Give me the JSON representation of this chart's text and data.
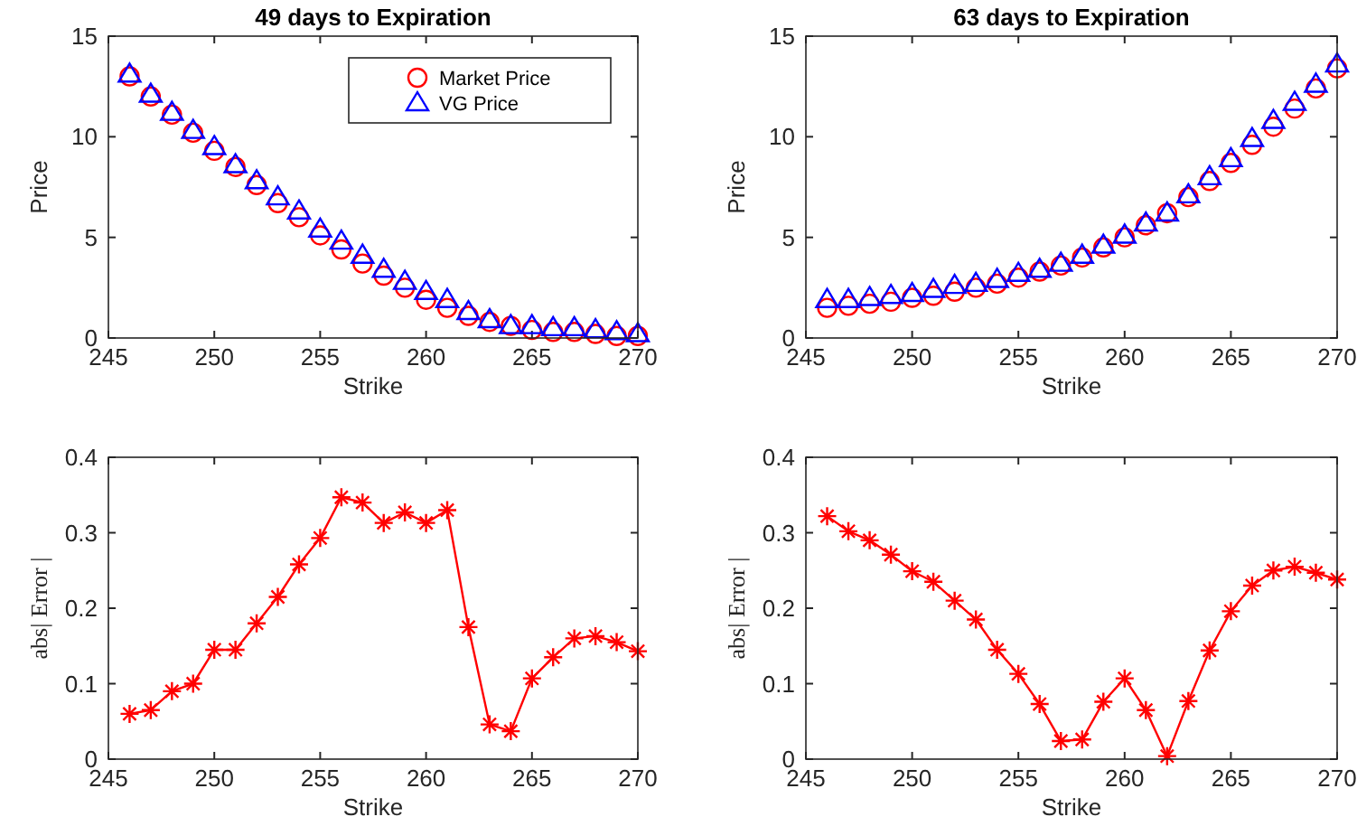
{
  "chart_data": [
    {
      "type": "scatter",
      "title": "49 days to Expiration",
      "xlabel": "Strike",
      "ylabel": "Price",
      "x": [
        246,
        247,
        248,
        249,
        250,
        251,
        252,
        253,
        254,
        255,
        256,
        257,
        258,
        259,
        260,
        261,
        262,
        263,
        264,
        265,
        266,
        267,
        268,
        269,
        270
      ],
      "xlim": [
        245,
        270
      ],
      "xticks": [
        245,
        250,
        255,
        260,
        265,
        270
      ],
      "ylim": [
        0,
        15
      ],
      "yticks": [
        0,
        5,
        10,
        15
      ],
      "legend": "top right",
      "series": [
        {
          "name": "Market Price",
          "color": "#ff0000",
          "marker": "circle",
          "values": [
            13.0,
            12.0,
            11.1,
            10.2,
            9.3,
            8.5,
            7.6,
            6.7,
            6.0,
            5.1,
            4.4,
            3.7,
            3.1,
            2.5,
            1.9,
            1.5,
            1.1,
            0.8,
            0.6,
            0.4,
            0.3,
            0.3,
            0.2,
            0.1,
            0.1
          ]
        },
        {
          "name": "VG Price",
          "color": "#0000ff",
          "marker": "triangle",
          "values": [
            13.1,
            12.1,
            11.2,
            10.3,
            9.5,
            8.6,
            7.8,
            7.0,
            6.3,
            5.4,
            4.8,
            4.1,
            3.4,
            2.8,
            2.3,
            1.9,
            1.3,
            0.9,
            0.6,
            0.6,
            0.5,
            0.5,
            0.4,
            0.3,
            0.2
          ]
        }
      ]
    },
    {
      "type": "scatter",
      "title": "63 days to Expiration",
      "xlabel": "Strike",
      "ylabel": "Price",
      "x": [
        246,
        247,
        248,
        249,
        250,
        251,
        252,
        253,
        254,
        255,
        256,
        257,
        258,
        259,
        260,
        261,
        262,
        263,
        264,
        265,
        266,
        267,
        268,
        269,
        270
      ],
      "xlim": [
        245,
        270
      ],
      "xticks": [
        245,
        250,
        255,
        260,
        265,
        270
      ],
      "ylim": [
        0,
        15
      ],
      "yticks": [
        0,
        5,
        10,
        15
      ],
      "series": [
        {
          "color": "#ff0000",
          "marker": "circle",
          "values": [
            1.5,
            1.6,
            1.7,
            1.8,
            2.0,
            2.1,
            2.3,
            2.5,
            2.7,
            3.0,
            3.3,
            3.6,
            4.0,
            4.5,
            5.0,
            5.6,
            6.2,
            7.0,
            7.8,
            8.7,
            9.6,
            10.5,
            11.4,
            12.4,
            13.4
          ]
        },
        {
          "color": "#0000ff",
          "marker": "triangle",
          "values": [
            1.9,
            1.9,
            2.0,
            2.1,
            2.2,
            2.4,
            2.6,
            2.7,
            2.9,
            3.2,
            3.4,
            3.7,
            4.1,
            4.6,
            5.1,
            5.7,
            6.2,
            7.1,
            8.0,
            8.9,
            9.9,
            10.8,
            11.7,
            12.6,
            13.6
          ]
        }
      ]
    },
    {
      "type": "line",
      "xlabel": "Strike",
      "ylabel": "abs| Error |",
      "x": [
        246,
        247,
        248,
        249,
        250,
        251,
        252,
        253,
        254,
        255,
        256,
        257,
        258,
        259,
        260,
        261,
        262,
        263,
        264,
        265,
        266,
        267,
        268,
        269,
        270
      ],
      "xlim": [
        245,
        270
      ],
      "xticks": [
        245,
        250,
        255,
        260,
        265,
        270
      ],
      "ylim": [
        0,
        0.4
      ],
      "yticks": [
        0,
        0.1,
        0.2,
        0.3,
        0.4
      ],
      "marker": "cross",
      "series": [
        {
          "color": "#ff0000",
          "values": [
            0.06,
            0.065,
            0.09,
            0.1,
            0.145,
            0.145,
            0.18,
            0.215,
            0.258,
            0.293,
            0.347,
            0.34,
            0.313,
            0.327,
            0.313,
            0.33,
            0.175,
            0.046,
            0.037,
            0.107,
            0.135,
            0.16,
            0.163,
            0.155,
            0.143
          ]
        }
      ]
    },
    {
      "type": "line",
      "xlabel": "Strike",
      "ylabel": "abs| Error |",
      "x": [
        246,
        247,
        248,
        249,
        250,
        251,
        252,
        253,
        254,
        255,
        256,
        257,
        258,
        259,
        260,
        261,
        262,
        263,
        264,
        265,
        266,
        267,
        268,
        269,
        270
      ],
      "xlim": [
        245,
        270
      ],
      "xticks": [
        245,
        250,
        255,
        260,
        265,
        270
      ],
      "ylim": [
        0,
        0.4
      ],
      "yticks": [
        0,
        0.1,
        0.2,
        0.3,
        0.4
      ],
      "marker": "cross",
      "series": [
        {
          "color": "#ff0000",
          "values": [
            0.322,
            0.302,
            0.29,
            0.271,
            0.249,
            0.235,
            0.21,
            0.185,
            0.145,
            0.113,
            0.073,
            0.024,
            0.026,
            0.076,
            0.107,
            0.065,
            0.004,
            0.077,
            0.144,
            0.196,
            0.23,
            0.25,
            0.255,
            0.247,
            0.238
          ]
        }
      ]
    }
  ]
}
